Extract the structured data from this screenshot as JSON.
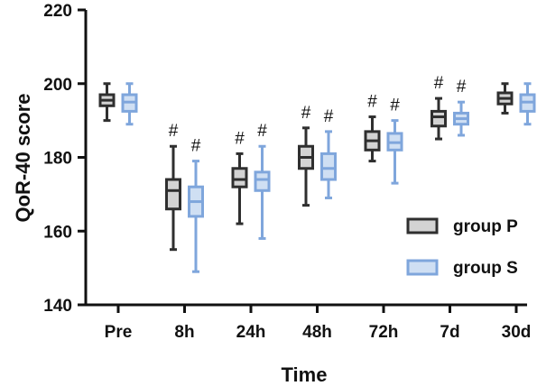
{
  "chart_data": {
    "type": "box",
    "xlabel": "Time",
    "ylabel": "QoR-40 score",
    "ylim": [
      140,
      220
    ],
    "yticks": [
      140,
      160,
      180,
      200,
      220
    ],
    "categories": [
      "Pre",
      "8h",
      "24h",
      "48h",
      "72h",
      "7d",
      "30d"
    ],
    "grid": false,
    "legend_position": "bottom-right",
    "series": [
      {
        "name": "group P",
        "fill": "#d3d3d3",
        "stroke": "#2f2f2f",
        "boxes": [
          {
            "min": 190,
            "q1": 194,
            "median": 195.5,
            "q3": 197,
            "max": 200,
            "mark": ""
          },
          {
            "min": 155,
            "q1": 166,
            "median": 171,
            "q3": 174,
            "max": 183,
            "mark": "#"
          },
          {
            "min": 162,
            "q1": 172,
            "median": 174,
            "q3": 177,
            "max": 181,
            "mark": "#"
          },
          {
            "min": 167,
            "q1": 177,
            "median": 180,
            "q3": 183,
            "max": 188,
            "mark": "#"
          },
          {
            "min": 179,
            "q1": 182,
            "median": 184.5,
            "q3": 187,
            "max": 191,
            "mark": "#"
          },
          {
            "min": 185,
            "q1": 188.5,
            "median": 191,
            "q3": 192.5,
            "max": 196,
            "mark": "#"
          },
          {
            "min": 192,
            "q1": 194.5,
            "median": 196,
            "q3": 197.5,
            "max": 200,
            "mark": ""
          }
        ]
      },
      {
        "name": "group S",
        "fill": "#cfdff3",
        "stroke": "#7fa6dc",
        "boxes": [
          {
            "min": 189,
            "q1": 192.5,
            "median": 195,
            "q3": 197,
            "max": 200,
            "mark": ""
          },
          {
            "min": 149,
            "q1": 164,
            "median": 168,
            "q3": 172,
            "max": 179,
            "mark": "#"
          },
          {
            "min": 158,
            "q1": 171,
            "median": 174,
            "q3": 176,
            "max": 183,
            "mark": "#"
          },
          {
            "min": 169,
            "q1": 174,
            "median": 177,
            "q3": 181,
            "max": 187,
            "mark": "#"
          },
          {
            "min": 173,
            "q1": 182,
            "median": 184,
            "q3": 186.5,
            "max": 190,
            "mark": "#"
          },
          {
            "min": 186,
            "q1": 189,
            "median": 190.5,
            "q3": 192,
            "max": 195,
            "mark": "#"
          },
          {
            "min": 189,
            "q1": 192.5,
            "median": 195,
            "q3": 197,
            "max": 200,
            "mark": ""
          }
        ]
      }
    ]
  }
}
